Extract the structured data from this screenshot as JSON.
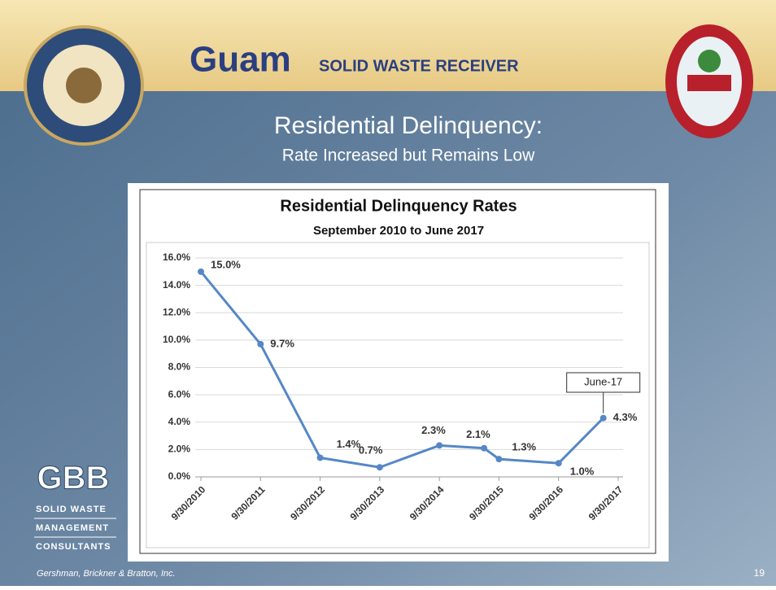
{
  "slide": {
    "brand": "Guam",
    "brand_sub": "SOLID WASTE RECEIVER",
    "title": "Residential Delinquency:",
    "subtitle": "Rate Increased but Remains Low",
    "logo": "GBB",
    "logo_lines": [
      "SOLID WASTE",
      "MANAGEMENT",
      "CONSULTANTS"
    ],
    "footer": "Gershman, Brickner & Bratton, Inc.",
    "page_number": "19"
  },
  "chart_data": {
    "type": "line",
    "title": "Residential Delinquency Rates",
    "subtitle": "September 2010 to June 2017",
    "x": [
      2010.75,
      2011.75,
      2012.75,
      2013.75,
      2014.75,
      2015.5,
      2015.75,
      2016.75,
      2017.5
    ],
    "values": [
      15.0,
      9.7,
      1.4,
      0.7,
      2.3,
      2.1,
      1.3,
      1.0,
      4.3
    ],
    "value_labels": [
      "15.0%",
      "9.7%",
      "1.4%",
      "0.7%",
      "2.3%",
      "2.1%",
      "1.3%",
      "1.0%",
      "4.3%"
    ],
    "color": "#5687c6",
    "xlim": [
      2010.75,
      2017.75
    ],
    "xticks": [
      {
        "value": 2010.75,
        "label": "9/30/2010"
      },
      {
        "value": 2011.75,
        "label": "9/30/2011"
      },
      {
        "value": 2012.75,
        "label": "9/30/2012"
      },
      {
        "value": 2013.75,
        "label": "9/30/2013"
      },
      {
        "value": 2014.75,
        "label": "9/30/2014"
      },
      {
        "value": 2015.75,
        "label": "9/30/2015"
      },
      {
        "value": 2016.75,
        "label": "9/30/2016"
      },
      {
        "value": 2017.75,
        "label": "9/30/2017"
      }
    ],
    "ylim": [
      0,
      16
    ],
    "yticks": [
      {
        "value": 0,
        "label": "0.0%"
      },
      {
        "value": 2,
        "label": "2.0%"
      },
      {
        "value": 4,
        "label": "4.0%"
      },
      {
        "value": 6,
        "label": "6.0%"
      },
      {
        "value": 8,
        "label": "8.0%"
      },
      {
        "value": 10,
        "label": "10.0%"
      },
      {
        "value": 12,
        "label": "12.0%"
      },
      {
        "value": 14,
        "label": "14.0%"
      },
      {
        "value": 16,
        "label": "16.0%"
      }
    ],
    "grid": true,
    "annotation": "June-17"
  }
}
